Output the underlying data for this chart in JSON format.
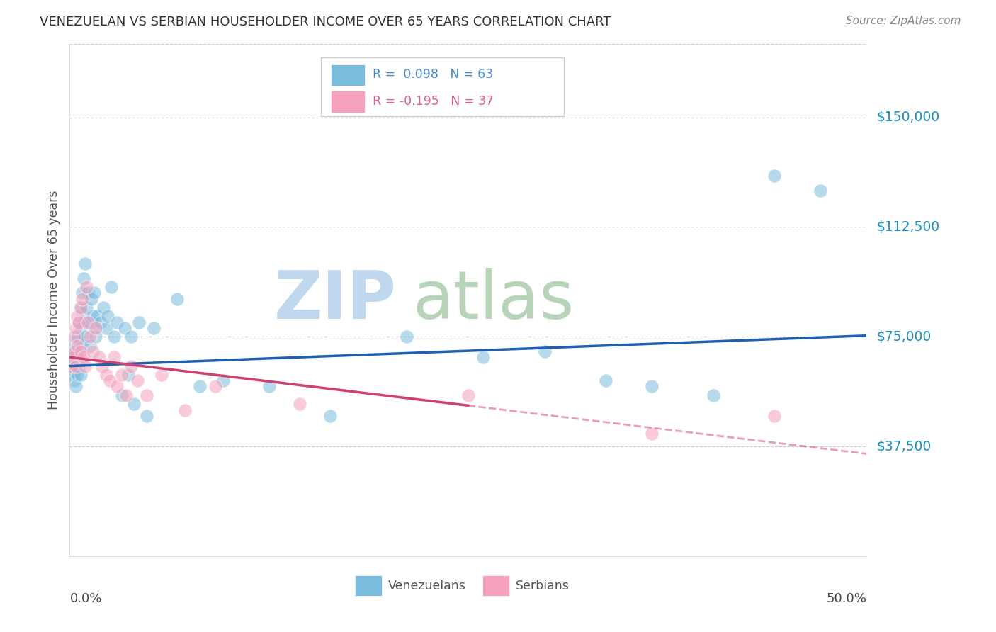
{
  "title": "VENEZUELAN VS SERBIAN HOUSEHOLDER INCOME OVER 65 YEARS CORRELATION CHART",
  "source": "Source: ZipAtlas.com",
  "ylabel": "Householder Income Over 65 years",
  "ytick_values": [
    37500,
    75000,
    112500,
    150000
  ],
  "ytick_labels": [
    "$37,500",
    "$75,000",
    "$112,500",
    "$150,000"
  ],
  "ylim": [
    0,
    175000
  ],
  "xlim": [
    0.0,
    0.52
  ],
  "venezuelan_color": "#7abcde",
  "serbian_color": "#f5a0bc",
  "venezuelan_line_color": "#2060b0",
  "serbian_line_color": "#d04070",
  "background_color": "#ffffff",
  "grid_color": "#c8c8c8",
  "legend_R_venezuelan": "R =  0.098",
  "legend_N_venezuelan": "N = 63",
  "legend_R_serbian": "R = -0.195",
  "legend_N_serbian": "N = 37",
  "ven_legend_color": "#4488cc",
  "ser_legend_color": "#e06090",
  "venezuelan_x": [
    0.001,
    0.002,
    0.002,
    0.003,
    0.003,
    0.003,
    0.004,
    0.004,
    0.004,
    0.005,
    0.005,
    0.005,
    0.005,
    0.006,
    0.006,
    0.007,
    0.007,
    0.007,
    0.008,
    0.008,
    0.008,
    0.009,
    0.009,
    0.01,
    0.01,
    0.011,
    0.012,
    0.013,
    0.013,
    0.014,
    0.015,
    0.016,
    0.016,
    0.017,
    0.018,
    0.02,
    0.022,
    0.024,
    0.025,
    0.027,
    0.029,
    0.031,
    0.034,
    0.036,
    0.038,
    0.04,
    0.042,
    0.045,
    0.05,
    0.055,
    0.07,
    0.085,
    0.1,
    0.13,
    0.17,
    0.22,
    0.27,
    0.31,
    0.35,
    0.38,
    0.42,
    0.46,
    0.49
  ],
  "venezuelan_y": [
    65000,
    62000,
    68000,
    63000,
    60000,
    72000,
    70000,
    65000,
    58000,
    74000,
    68000,
    62000,
    75000,
    80000,
    65000,
    85000,
    78000,
    62000,
    90000,
    83000,
    72000,
    80000,
    95000,
    100000,
    75000,
    85000,
    90000,
    80000,
    72000,
    88000,
    82000,
    90000,
    78000,
    75000,
    82000,
    80000,
    85000,
    78000,
    82000,
    92000,
    75000,
    80000,
    55000,
    78000,
    62000,
    75000,
    52000,
    80000,
    48000,
    78000,
    88000,
    58000,
    60000,
    58000,
    48000,
    75000,
    68000,
    70000,
    60000,
    58000,
    55000,
    130000,
    125000
  ],
  "serbian_x": [
    0.001,
    0.002,
    0.003,
    0.003,
    0.004,
    0.004,
    0.005,
    0.005,
    0.006,
    0.007,
    0.007,
    0.008,
    0.009,
    0.01,
    0.011,
    0.012,
    0.013,
    0.015,
    0.017,
    0.019,
    0.021,
    0.024,
    0.026,
    0.029,
    0.031,
    0.034,
    0.037,
    0.04,
    0.044,
    0.05,
    0.06,
    0.075,
    0.095,
    0.15,
    0.26,
    0.38,
    0.46
  ],
  "serbian_y": [
    65000,
    68000,
    75000,
    70000,
    78000,
    65000,
    82000,
    72000,
    80000,
    85000,
    70000,
    88000,
    68000,
    65000,
    92000,
    80000,
    75000,
    70000,
    78000,
    68000,
    65000,
    62000,
    60000,
    68000,
    58000,
    62000,
    55000,
    65000,
    60000,
    55000,
    62000,
    50000,
    58000,
    52000,
    55000,
    42000,
    48000
  ]
}
